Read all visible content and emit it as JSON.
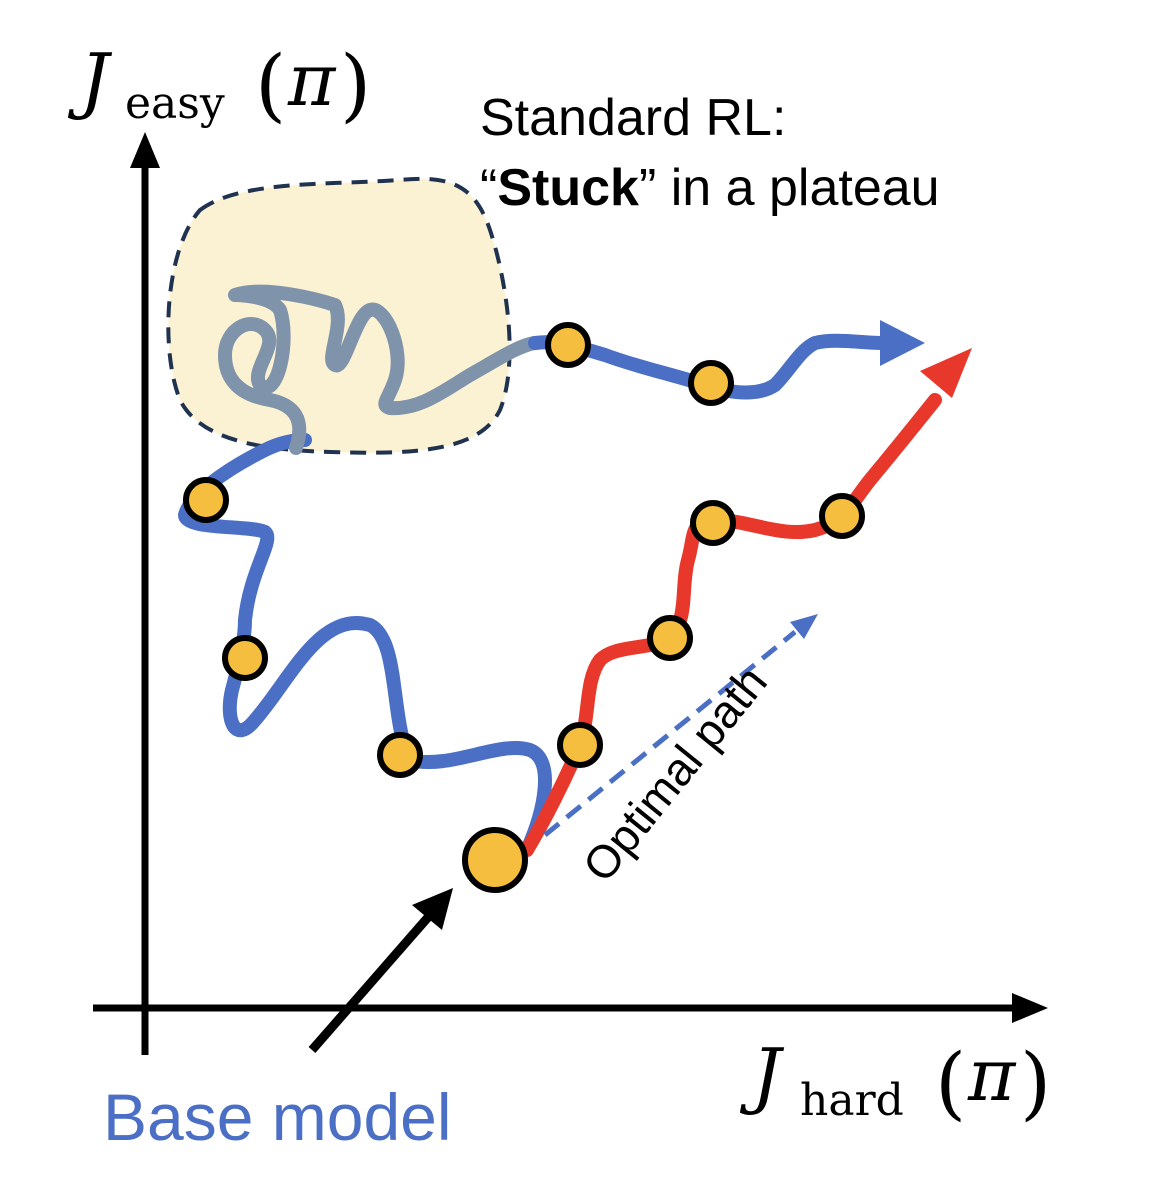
{
  "axes": {
    "y_label": {
      "main": "J",
      "sub": "easy",
      "open": "(",
      "pi": "π",
      "close": ")"
    },
    "x_label": {
      "main": "J",
      "sub": "hard",
      "open": "(",
      "pi": "π",
      "close": ")"
    }
  },
  "annotations": {
    "standard_rl_line1": "Standard RL:",
    "standard_rl_quote_open": "“",
    "standard_rl_bold": "Stuck",
    "standard_rl_rest": "” in a plateau",
    "optimal_path": "Optimal path",
    "base_model": "Base model"
  },
  "colors": {
    "blue_path": "#4a6fc4",
    "red_path": "#e8382b",
    "gray_path": "#7f93aa",
    "plateau_fill": "#fbf1d3",
    "plateau_border": "#1f3350",
    "node_fill": "#f5be3f",
    "base_model_text": "#4a6fc4",
    "axis": "#000000"
  }
}
